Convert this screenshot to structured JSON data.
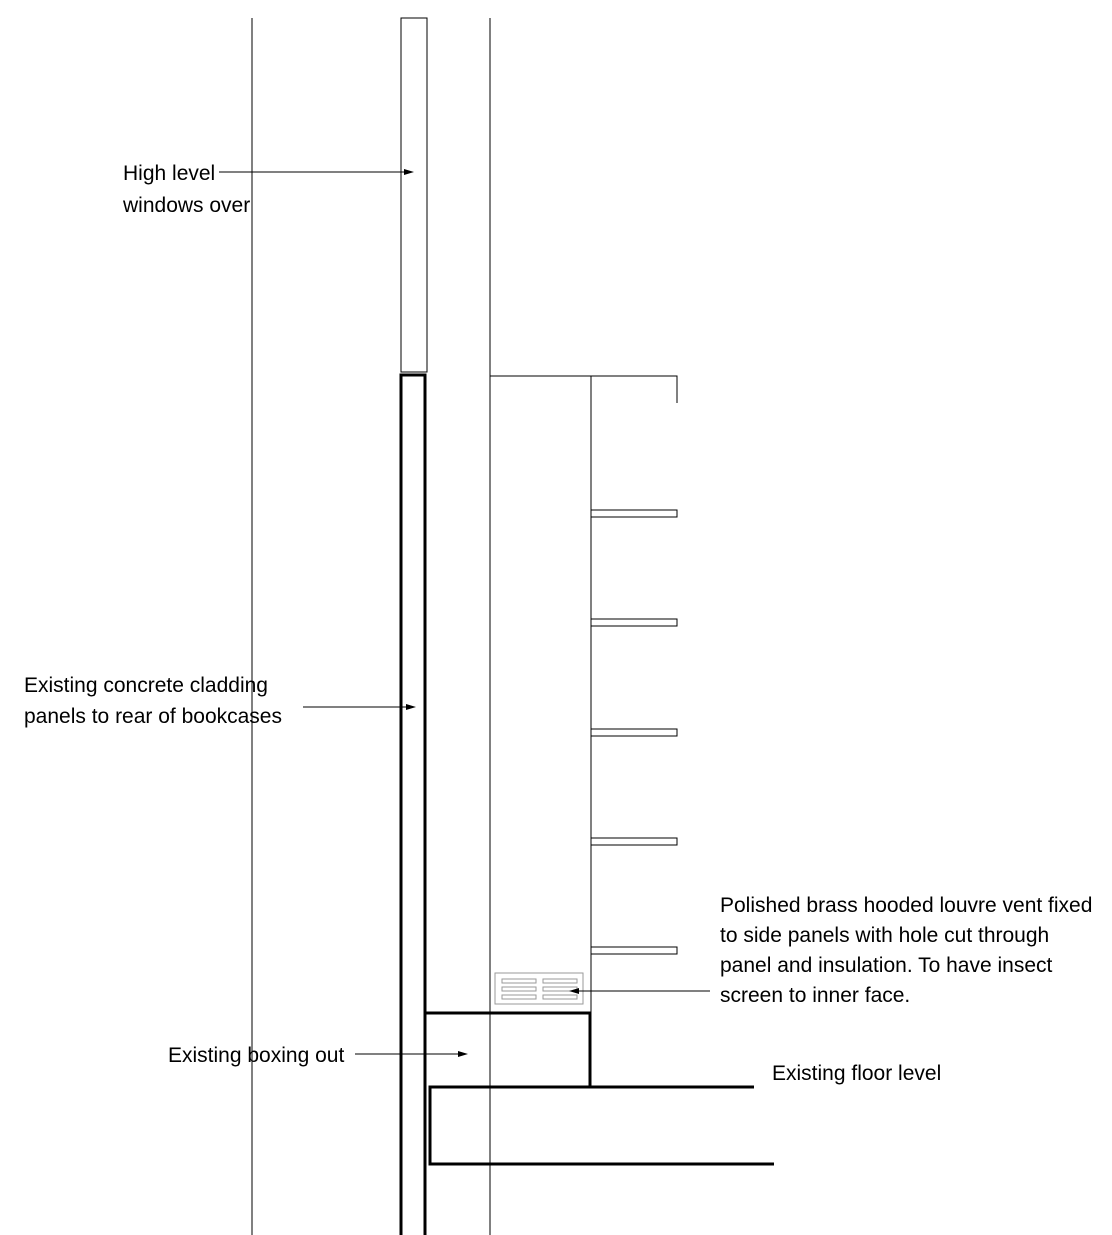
{
  "labels": {
    "high_level_1": "High level",
    "high_level_2": "windows over",
    "cladding_1": "Existing concrete cladding",
    "cladding_2": "panels to rear of bookcases",
    "vent_1": "Polished brass hooded louvre vent fixed",
    "vent_2": "to side panels with hole cut through",
    "vent_3": "panel and insulation. To have insect",
    "vent_4": "screen to inner face.",
    "boxing": "Existing boxing out",
    "floor": "Existing floor level"
  },
  "colors": {
    "line": "#000000",
    "vent": "#9a9a9a",
    "background": "#ffffff"
  }
}
